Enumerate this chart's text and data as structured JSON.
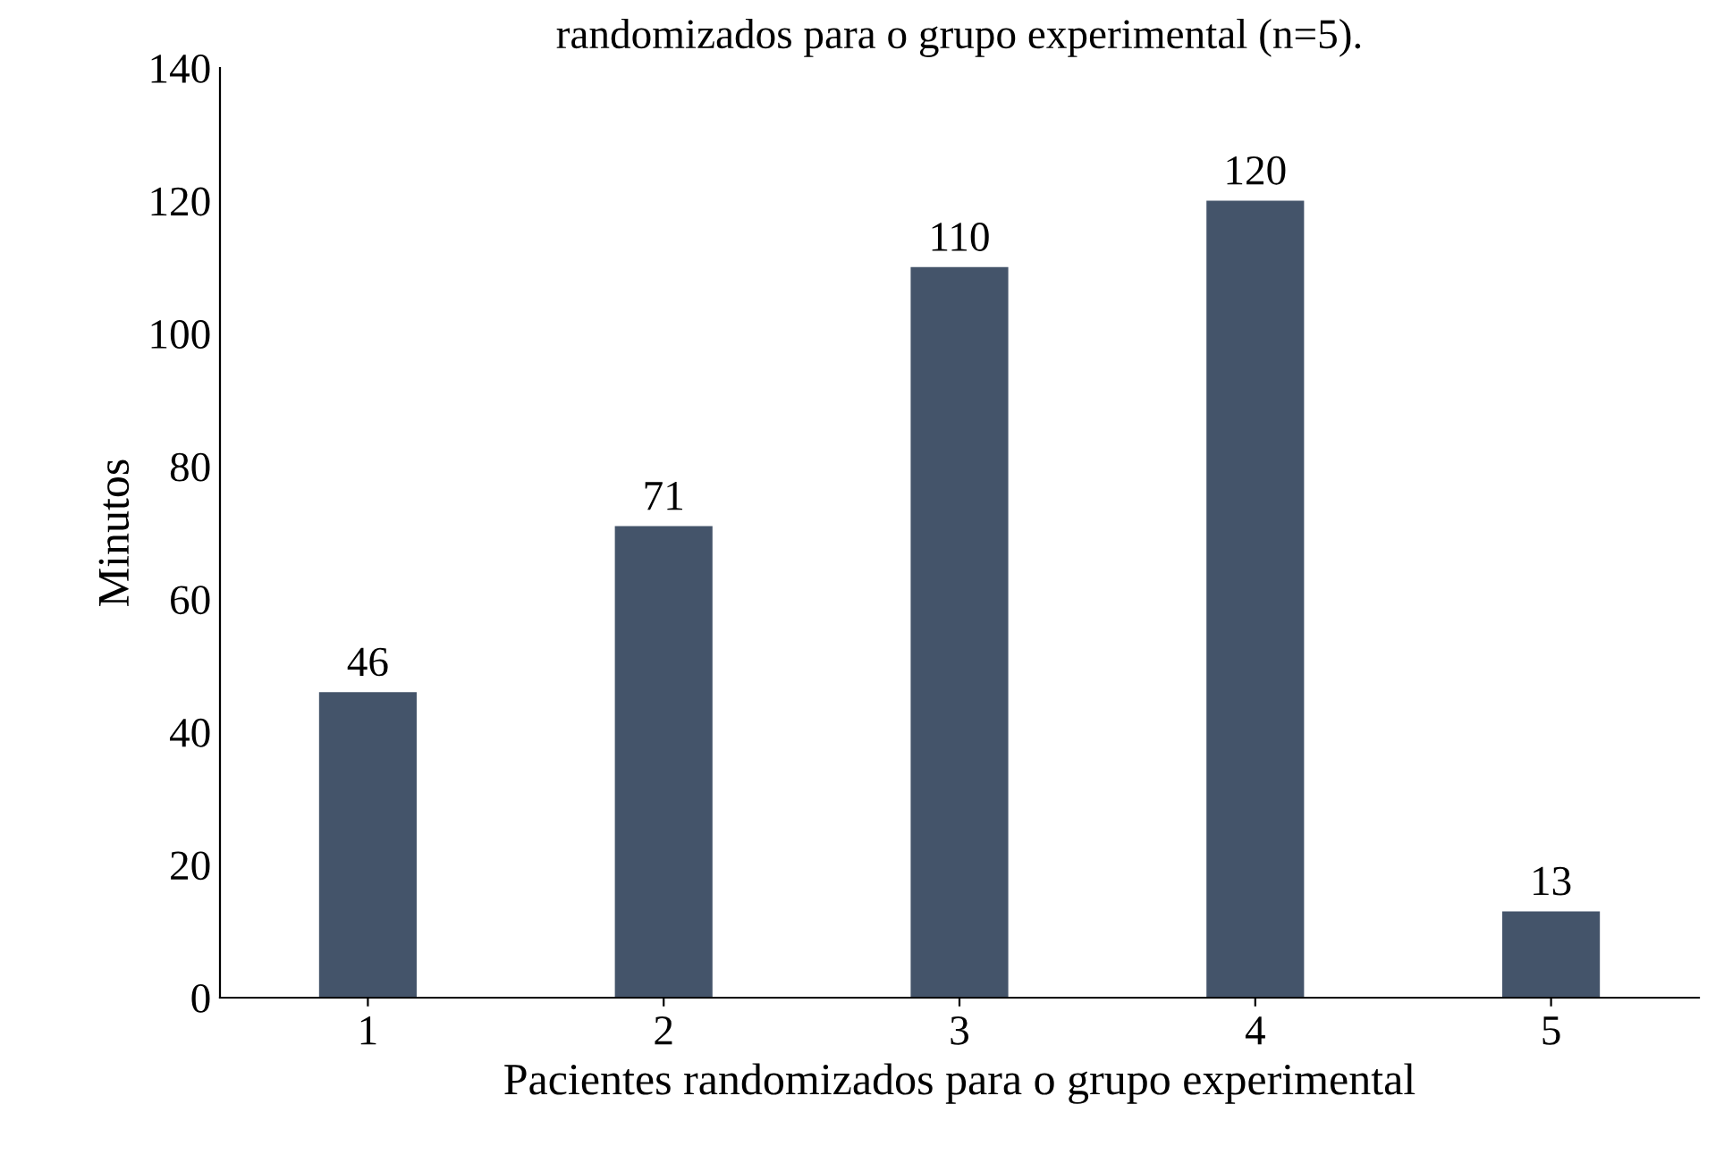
{
  "chart_data": {
    "type": "bar",
    "title": "randomizados para o grupo experimental (n=5).",
    "xlabel": "Pacientes randomizados para o grupo experimental",
    "ylabel": "Minutos",
    "categories": [
      "1",
      "2",
      "3",
      "4",
      "5"
    ],
    "values": [
      46,
      71,
      110,
      120,
      13
    ],
    "color": "#44546a",
    "ylim": [
      0,
      140
    ],
    "yticks": [
      0,
      20,
      40,
      60,
      80,
      100,
      120,
      140
    ],
    "data_labels": true,
    "grid": false
  }
}
